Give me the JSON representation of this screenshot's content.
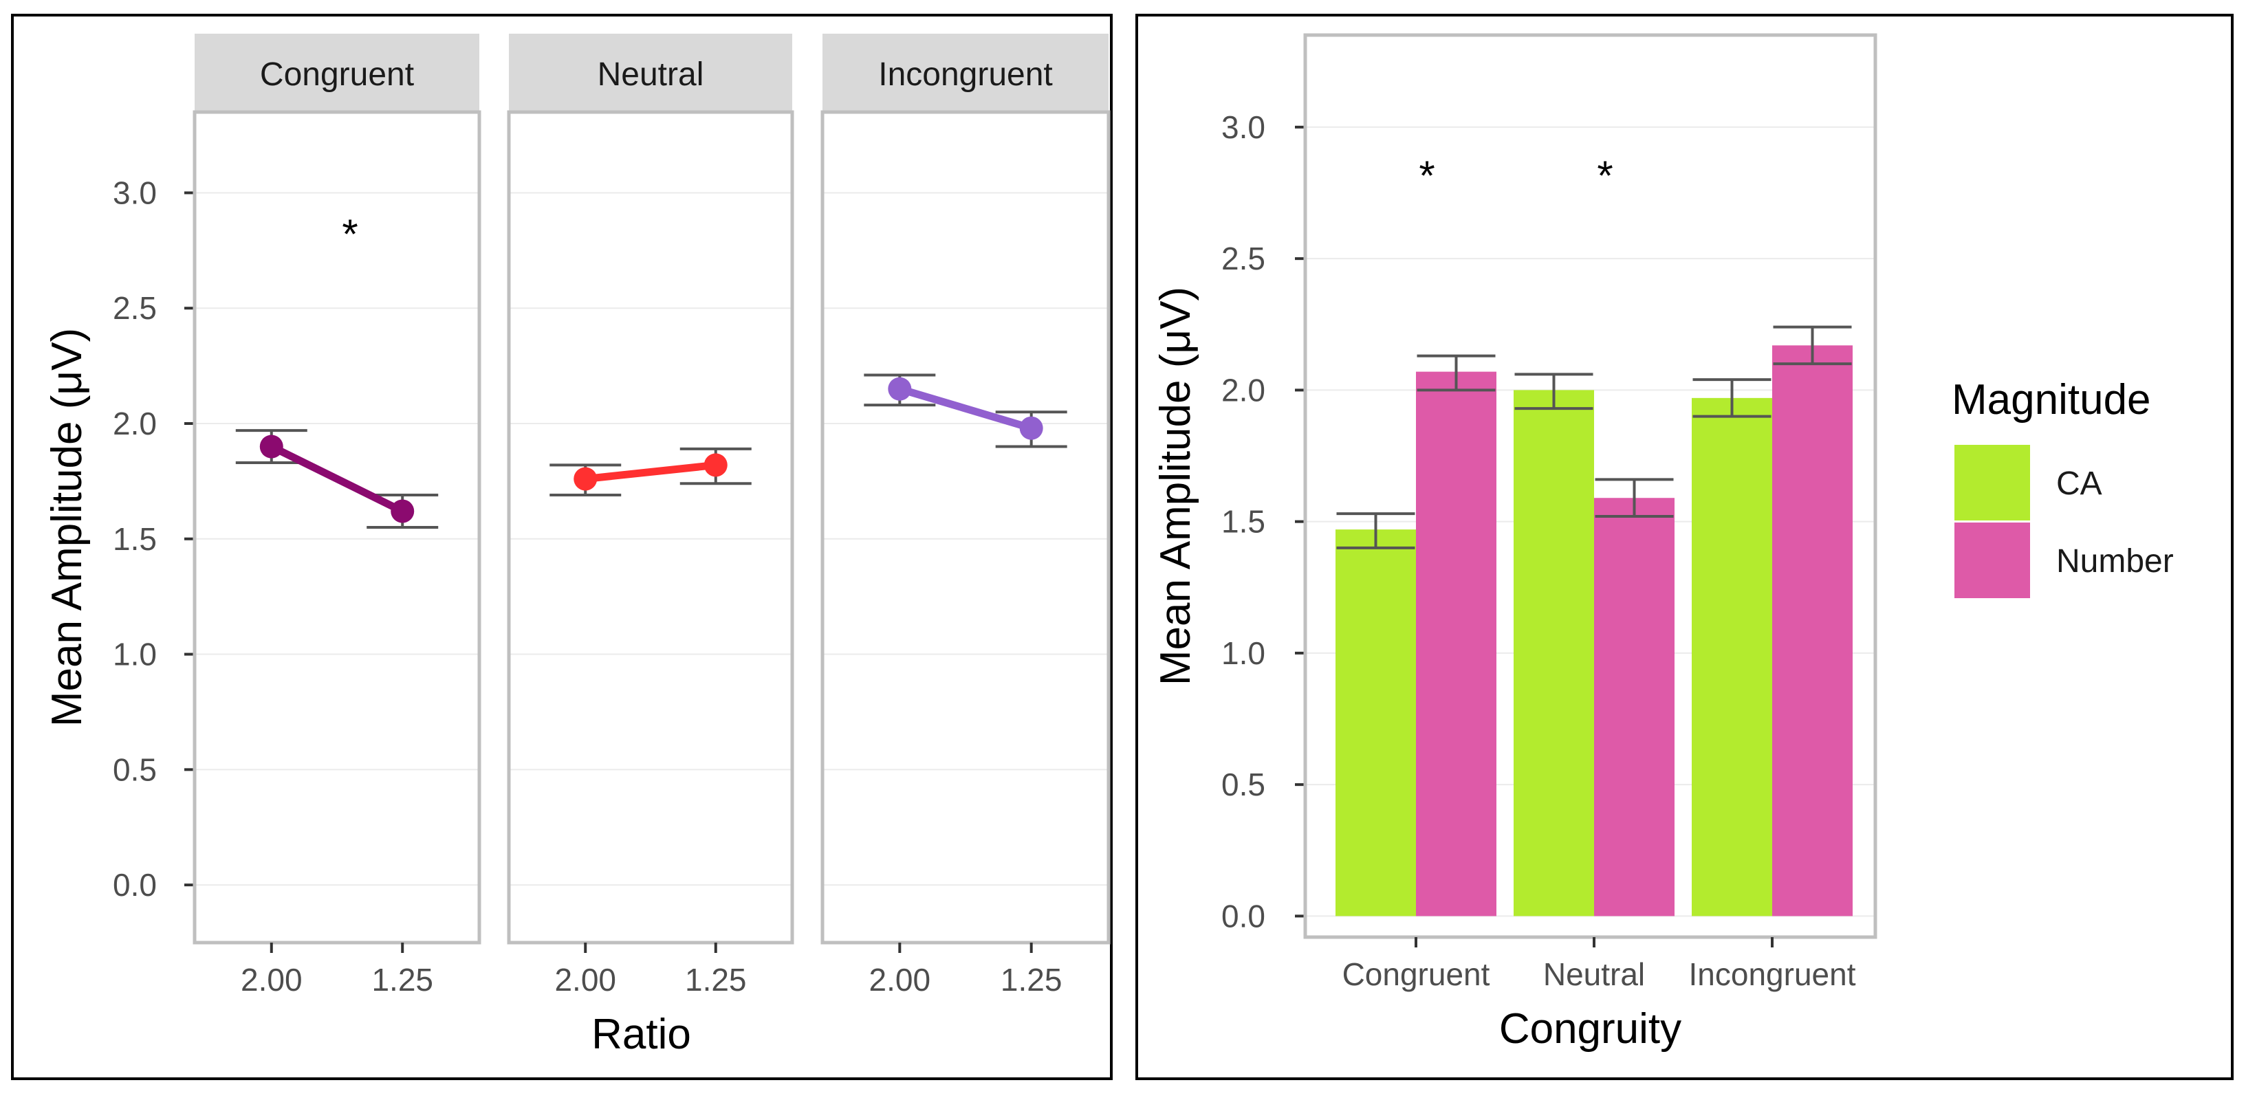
{
  "colors": {
    "background": "#ffffff",
    "panel_border": "#000000",
    "plot_border": "#bfbfbf",
    "strip_fill": "#d9d9d9",
    "grid": "#ebebeb",
    "tick_text": "#4d4d4d",
    "axis_title": "#000000",
    "errorbar": "#555555",
    "congruent_line": "#8b0a6f",
    "neutral_line": "#ff3030",
    "incongruent_line": "#9160cf",
    "ca_fill": "#b3eb2e",
    "number_fill": "#de5aa8"
  },
  "chart_data": [
    {
      "type": "line",
      "facet_variable": "Congruity",
      "xlabel": "Ratio",
      "ylabel": "Mean Amplitude (μV)",
      "ylim": [
        -0.25,
        3.35
      ],
      "yticks": [
        "0.0",
        "0.5",
        "1.0",
        "1.5",
        "2.0",
        "2.5",
        "3.0"
      ],
      "categories": [
        "2.00",
        "1.25"
      ],
      "grid": true,
      "panels": [
        {
          "name": "Congruent",
          "values": [
            1.9,
            1.62
          ],
          "err_low": [
            1.83,
            1.55
          ],
          "err_high": [
            1.97,
            1.69
          ],
          "color_key": "congruent_line",
          "annotation": "*",
          "annotation_x": 1.6,
          "annotation_y": 2.85
        },
        {
          "name": "Neutral",
          "values": [
            1.76,
            1.82
          ],
          "err_low": [
            1.69,
            1.74
          ],
          "err_high": [
            1.82,
            1.89
          ],
          "color_key": "neutral_line",
          "annotation": "",
          "annotation_x": 1.5,
          "annotation_y": 2.85
        },
        {
          "name": "Incongruent",
          "values": [
            2.15,
            1.98
          ],
          "err_low": [
            2.08,
            1.9
          ],
          "err_high": [
            2.21,
            2.05
          ],
          "color_key": "incongruent_line",
          "annotation": "",
          "annotation_x": 1.5,
          "annotation_y": 2.85
        }
      ]
    },
    {
      "type": "bar",
      "xlabel": "Congruity",
      "ylabel": "Mean Amplitude (μV)",
      "ylim": [
        -0.08,
        3.35
      ],
      "yticks": [
        "0.0",
        "0.5",
        "1.0",
        "1.5",
        "2.0",
        "2.5",
        "3.0"
      ],
      "categories": [
        "Congruent",
        "Neutral",
        "Incongruent"
      ],
      "grid": true,
      "legend_title": "Magnitude",
      "legend_position": "right",
      "series": [
        {
          "name": "CA",
          "values": [
            1.47,
            2.0,
            1.97
          ],
          "err_low": [
            1.4,
            1.93,
            1.9
          ],
          "err_high": [
            1.53,
            2.06,
            2.04
          ],
          "color_key": "ca_fill"
        },
        {
          "name": "Number",
          "values": [
            2.07,
            1.59,
            2.17
          ],
          "err_low": [
            2.0,
            1.52,
            2.1
          ],
          "err_high": [
            2.13,
            1.66,
            2.24
          ],
          "color_key": "number_fill"
        }
      ],
      "annotations": [
        {
          "text": "*",
          "category_index": 0,
          "y": 2.84
        },
        {
          "text": "*",
          "category_index": 1,
          "y": 2.84
        }
      ]
    }
  ]
}
